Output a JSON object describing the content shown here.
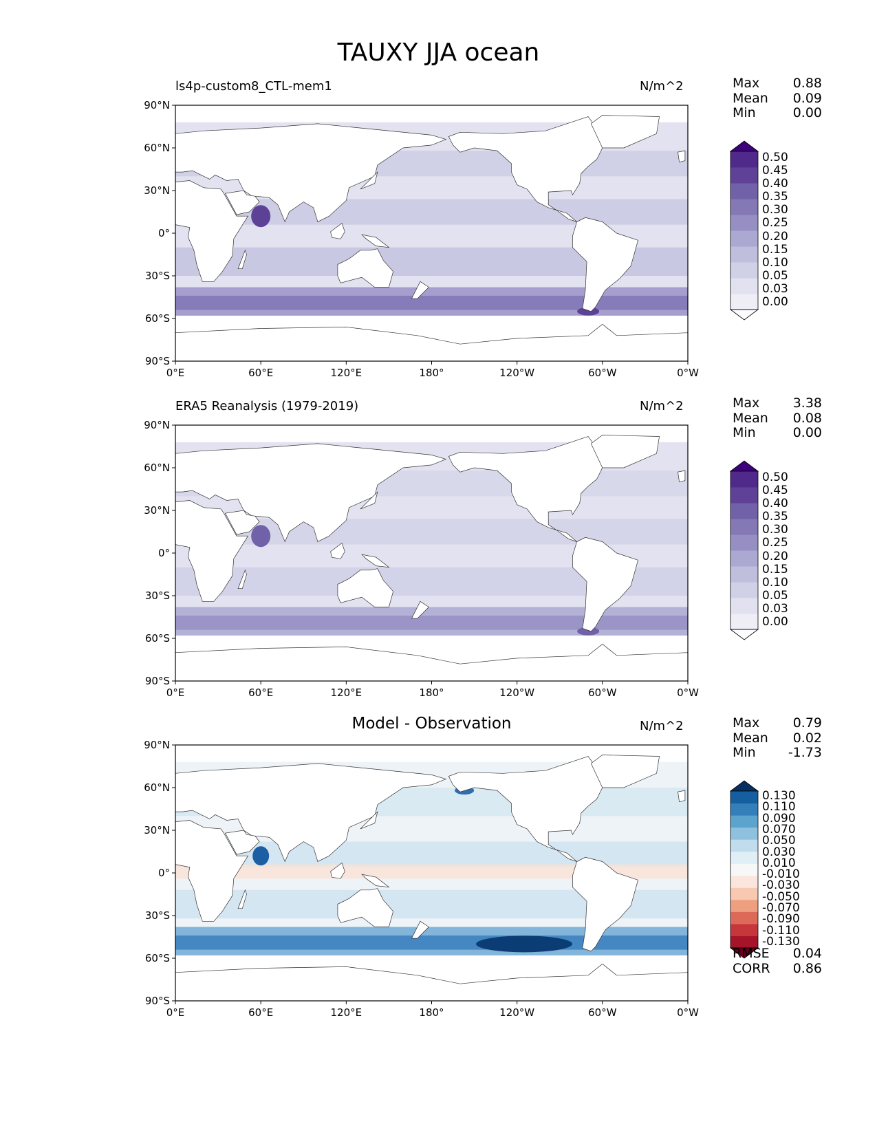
{
  "figure_title": "TAUXY JJA ocean",
  "chart_data": [
    {
      "type": "heatmap",
      "title": "ls4p-custom8_CTL-mem1",
      "units": "N/m^2",
      "stats": [
        {
          "label": "Max",
          "value": "0.88"
        },
        {
          "label": "Mean",
          "value": "0.09"
        },
        {
          "label": "Min",
          "value": "0.00"
        }
      ],
      "colorbar": {
        "levels": [
          "0.50",
          "0.45",
          "0.40",
          "0.35",
          "0.30",
          "0.25",
          "0.20",
          "0.15",
          "0.10",
          "0.05",
          "0.03",
          "0.00"
        ],
        "colors": [
          "#fcfbfd",
          "#efedf5",
          "#e2e1ef",
          "#d0d1e6",
          "#bfbedc",
          "#aba8d2",
          "#978fc4",
          "#8478b5",
          "#7161a8",
          "#604198",
          "#4f2a8a",
          "#3f007d"
        ]
      },
      "xlim": [
        0,
        360
      ],
      "ylim": [
        -90,
        90
      ]
    },
    {
      "type": "heatmap",
      "title": "ERA5 Reanalysis (1979-2019)",
      "units": "N/m^2",
      "stats": [
        {
          "label": "Max",
          "value": "3.38"
        },
        {
          "label": "Mean",
          "value": "0.08"
        },
        {
          "label": "Min",
          "value": "0.00"
        }
      ],
      "colorbar": {
        "levels": [
          "0.50",
          "0.45",
          "0.40",
          "0.35",
          "0.30",
          "0.25",
          "0.20",
          "0.15",
          "0.10",
          "0.05",
          "0.03",
          "0.00"
        ],
        "colors": [
          "#fcfbfd",
          "#efedf5",
          "#e2e1ef",
          "#d0d1e6",
          "#bfbedc",
          "#aba8d2",
          "#978fc4",
          "#8478b5",
          "#7161a8",
          "#604198",
          "#4f2a8a",
          "#3f007d"
        ]
      },
      "xlim": [
        0,
        360
      ],
      "ylim": [
        -90,
        90
      ]
    },
    {
      "type": "heatmap",
      "title": "Model - Observation",
      "units": "N/m^2",
      "stats": [
        {
          "label": "Max",
          "value": "0.79"
        },
        {
          "label": "Mean",
          "value": "0.02"
        },
        {
          "label": "Min",
          "value": "-1.73"
        }
      ],
      "metrics": [
        {
          "label": "RMSE",
          "value": "0.04"
        },
        {
          "label": "CORR",
          "value": "0.86"
        }
      ],
      "colorbar": {
        "levels": [
          "0.130",
          "0.110",
          "0.090",
          "0.070",
          "0.050",
          "0.030",
          "0.010",
          "-0.010",
          "-0.030",
          "-0.050",
          "-0.070",
          "-0.090",
          "-0.110",
          "-0.130"
        ],
        "colors": [
          "#67001f",
          "#a51429",
          "#c6373c",
          "#dd6a59",
          "#ee9f7f",
          "#f8c8b0",
          "#fae6dc",
          "#f7f7f7",
          "#e0eef5",
          "#c1dded",
          "#8dc1dd",
          "#5ca3cd",
          "#327fb9",
          "#155fa0",
          "#053061"
        ]
      },
      "xlim": [
        0,
        360
      ],
      "ylim": [
        -90,
        90
      ]
    }
  ],
  "axes": {
    "x_ticks": [
      "0°E",
      "60°E",
      "120°E",
      "180°",
      "120°W",
      "60°W",
      "0°W"
    ],
    "y_ticks": [
      "90°N",
      "60°N",
      "30°N",
      "0°",
      "30°S",
      "60°S",
      "90°S"
    ]
  }
}
